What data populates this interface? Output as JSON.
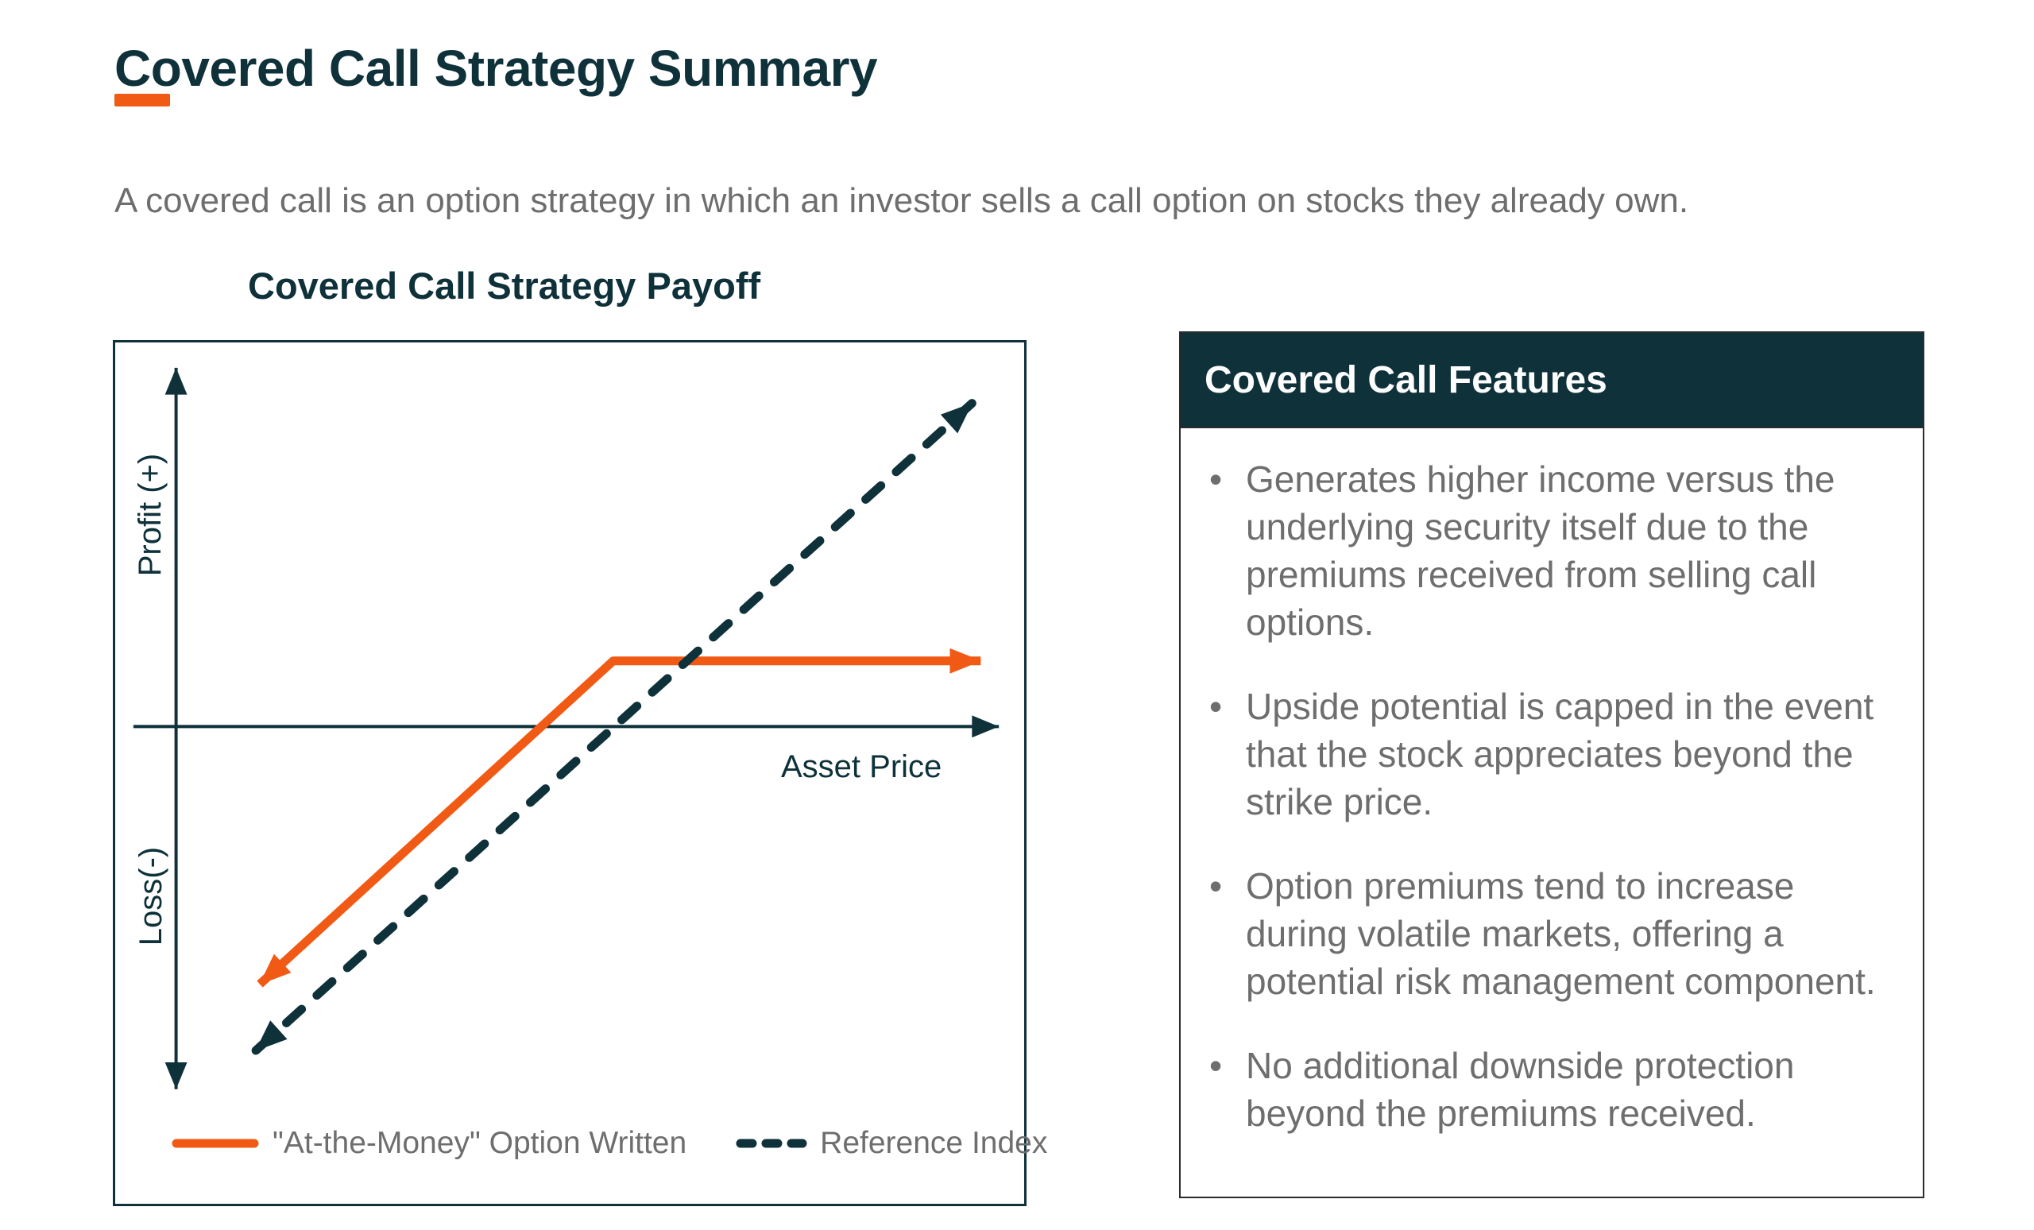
{
  "page": {
    "title": "Covered Call Strategy Summary",
    "description": "A covered call is an option strategy in which an investor sells a call option on stocks they already own."
  },
  "colors": {
    "background": "#ffffff",
    "teal": "#0e313a",
    "orange": "#f15a14",
    "text_gray": "#6e6e6e",
    "panel_border": "#2b2b2b",
    "header_text": "#fdfdfd"
  },
  "chart_data": {
    "type": "line",
    "title": "Covered Call Strategy Payoff",
    "xlabel": "Asset Price",
    "ylabel_positive": "Profit (+)",
    "ylabel_negative": "Loss(-)",
    "axes_note": "Conceptual payoff diagram with no numeric scale; vertical double-headed arrow spans profit (above zero line) to loss (below zero line); horizontal arrow is asset price increasing to the right.",
    "legend_position": "bottom-inside",
    "grid": false,
    "series": [
      {
        "name": "\"At-the-Money\" Option Written",
        "color": "#f15a14",
        "style": "solid",
        "shape": "Rises one-for-one with the asset price from a loss in the lower left, crosses breakeven just below the strike, then is capped flat above the strike price; arrowheads at both ends.",
        "points_frac": [
          [
            0.159,
            0.745
          ],
          [
            0.548,
            0.37
          ],
          [
            0.952,
            0.37
          ]
        ]
      },
      {
        "name": "Reference Index",
        "color": "#0e313a",
        "style": "dashed",
        "shape": "Straight one-for-one payoff of the underlying index rising from lower-left loss to upper-right profit; arrowheads at both ends.",
        "points_frac": [
          [
            0.155,
            0.822
          ],
          [
            0.943,
            0.071
          ]
        ]
      }
    ]
  },
  "features": {
    "header": "Covered Call Features",
    "bullets": [
      "Generates higher income versus the underlying security itself due to the premiums received from selling call options.",
      "Upside potential is capped in the event that the stock appreciates beyond the strike price.",
      "Option premiums tend to increase during volatile markets, offering a potential risk management component.",
      "No additional downside protection beyond the premiums received."
    ]
  }
}
